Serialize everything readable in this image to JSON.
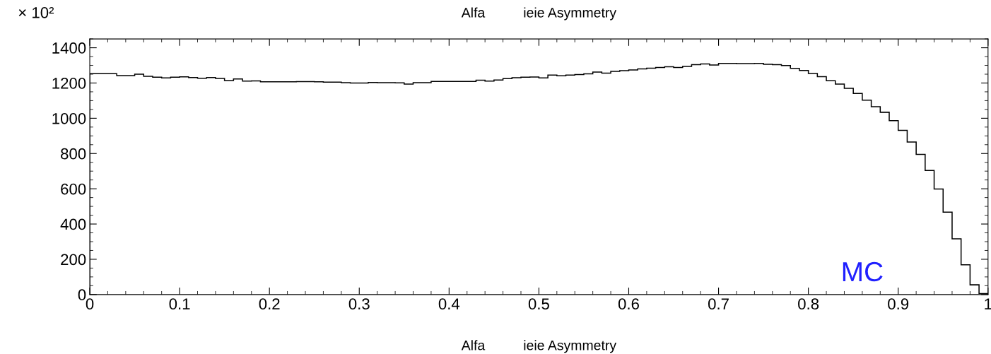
{
  "chart_data": {
    "type": "histogram",
    "title": "Alfa          ieie Asymmetry",
    "xlabel": "Alfa          ieie Asymmetry",
    "annotations": [
      "× 10²",
      "MC"
    ],
    "bins": [
      0,
      0.01,
      0.02,
      0.03,
      0.04,
      0.05,
      0.06,
      0.07,
      0.08,
      0.09,
      0.1,
      0.11,
      0.12,
      0.13,
      0.14,
      0.15,
      0.16,
      0.17,
      0.18,
      0.19,
      0.2,
      0.21,
      0.22,
      0.23,
      0.24,
      0.25,
      0.26,
      0.27,
      0.28,
      0.29,
      0.3,
      0.31,
      0.32,
      0.33,
      0.34,
      0.35,
      0.36,
      0.37,
      0.38,
      0.39,
      0.4,
      0.41,
      0.42,
      0.43,
      0.44,
      0.45,
      0.46,
      0.47,
      0.48,
      0.49,
      0.5,
      0.51,
      0.52,
      0.53,
      0.54,
      0.55,
      0.56,
      0.57,
      0.58,
      0.59,
      0.6,
      0.61,
      0.62,
      0.63,
      0.64,
      0.65,
      0.66,
      0.67,
      0.68,
      0.69,
      0.7,
      0.71,
      0.72,
      0.73,
      0.74,
      0.75,
      0.76,
      0.77,
      0.78,
      0.79,
      0.8,
      0.81,
      0.82,
      0.83,
      0.84,
      0.85,
      0.86,
      0.87,
      0.88,
      0.89,
      0.9,
      0.91,
      0.92,
      0.93,
      0.94,
      0.95,
      0.96,
      0.97,
      0.98,
      0.99,
      1
    ],
    "values": [
      1253,
      1253,
      1253,
      1242,
      1242,
      1250,
      1238,
      1233,
      1229,
      1233,
      1235,
      1231,
      1227,
      1231,
      1226,
      1214,
      1223,
      1211,
      1212,
      1207,
      1207,
      1207,
      1207,
      1208,
      1208,
      1207,
      1205,
      1205,
      1202,
      1200,
      1200,
      1203,
      1202,
      1202,
      1201,
      1194,
      1202,
      1202,
      1209,
      1209,
      1209,
      1209,
      1209,
      1216,
      1211,
      1217,
      1225,
      1230,
      1233,
      1234,
      1229,
      1245,
      1241,
      1245,
      1248,
      1252,
      1262,
      1256,
      1266,
      1270,
      1274,
      1280,
      1284,
      1288,
      1292,
      1288,
      1294,
      1304,
      1308,
      1302,
      1311,
      1311,
      1310,
      1310,
      1311,
      1306,
      1304,
      1299,
      1283,
      1271,
      1254,
      1236,
      1213,
      1194,
      1170,
      1141,
      1103,
      1066,
      1034,
      986,
      931,
      865,
      795,
      704,
      599,
      467,
      316,
      169,
      55,
      5
    ],
    "color": "#000000",
    "xlim": [
      0,
      1
    ],
    "xticks": [
      0,
      0.1,
      0.2,
      0.3,
      0.4,
      0.5,
      0.6,
      0.7,
      0.8,
      0.9,
      1
    ],
    "ylim": [
      0,
      1450
    ],
    "yticks": [
      0,
      200,
      400,
      600,
      800,
      1000,
      1200,
      1400
    ],
    "grid": false,
    "legend": false
  }
}
